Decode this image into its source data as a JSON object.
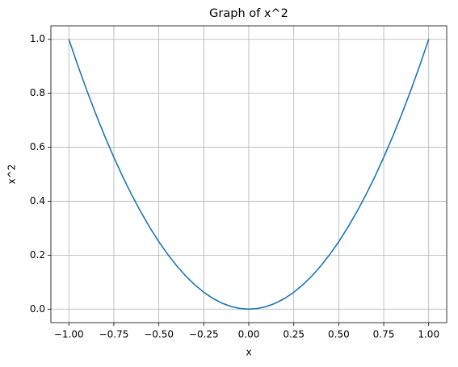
{
  "chart_data": {
    "type": "line",
    "title": "Graph of x^2",
    "xlabel": "x",
    "ylabel": "x^2",
    "x": [
      -1,
      -0.95,
      -0.9,
      -0.85,
      -0.8,
      -0.75,
      -0.7,
      -0.65,
      -0.6,
      -0.55,
      -0.5,
      -0.45,
      -0.4,
      -0.35,
      -0.3,
      -0.25,
      -0.2,
      -0.15,
      -0.1,
      -0.05,
      0,
      0.05,
      0.1,
      0.15,
      0.2,
      0.25,
      0.3,
      0.35,
      0.4,
      0.45,
      0.5,
      0.55,
      0.6,
      0.65,
      0.7,
      0.75,
      0.8,
      0.85,
      0.9,
      0.95,
      1
    ],
    "series": [
      {
        "color": "#1f77b4",
        "values": [
          1,
          0.9025,
          0.81,
          0.7225,
          0.64,
          0.5625,
          0.49,
          0.4225,
          0.36,
          0.3025,
          0.25,
          0.2025,
          0.16,
          0.1225,
          0.09,
          0.0625,
          0.04,
          0.0225,
          0.01,
          0.0025,
          0,
          0.0025,
          0.01,
          0.0225,
          0.04,
          0.0625,
          0.09,
          0.1225,
          0.16,
          0.2025,
          0.25,
          0.3025,
          0.36,
          0.4225,
          0.49,
          0.5625,
          0.64,
          0.7225,
          0.81,
          0.9025,
          1
        ]
      }
    ],
    "xlim": [
      -1.1,
      1.1
    ],
    "ylim": [
      -0.05,
      1.05
    ],
    "xticks": [
      {
        "value": -1,
        "label": "−1.00"
      },
      {
        "value": -0.75,
        "label": "−0.75"
      },
      {
        "value": -0.5,
        "label": "−0.50"
      },
      {
        "value": -0.25,
        "label": "−0.25"
      },
      {
        "value": 0,
        "label": "0.00"
      },
      0.25,
      {
        "value": 0.5,
        "label": "0.50"
      },
      0.75,
      {
        "value": 1,
        "label": "1.00"
      }
    ],
    "yticks": [
      {
        "value": 0,
        "label": "0.0"
      },
      0.2,
      0.4,
      0.6,
      0.8,
      {
        "value": 1,
        "label": "1.0"
      }
    ],
    "grid": true
  }
}
